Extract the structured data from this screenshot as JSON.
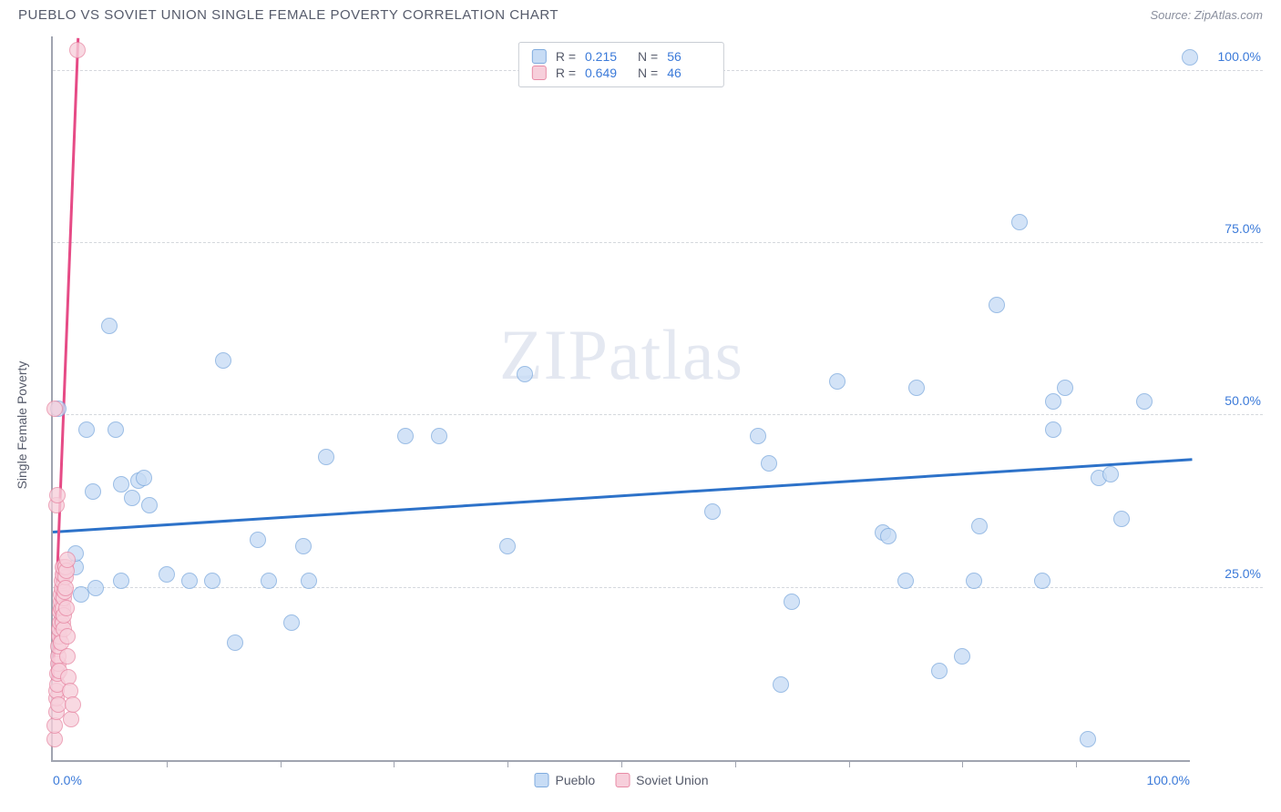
{
  "header": {
    "title": "PUEBLO VS SOVIET UNION SINGLE FEMALE POVERTY CORRELATION CHART",
    "source_prefix": "Source: ",
    "source_name": "ZipAtlas.com"
  },
  "chart": {
    "type": "scatter",
    "y_axis_label": "Single Female Poverty",
    "xlim": [
      0,
      100
    ],
    "ylim": [
      0,
      105
    ],
    "x_ticks_minor": [
      10,
      20,
      30,
      40,
      50,
      60,
      70,
      80,
      90
    ],
    "x_ticks_labeled": [
      {
        "v": 0,
        "label": "0.0%",
        "align": "left"
      },
      {
        "v": 100,
        "label": "100.0%",
        "align": "right"
      }
    ],
    "y_ticks": [
      {
        "v": 25,
        "label": "25.0%"
      },
      {
        "v": 50,
        "label": "50.0%"
      },
      {
        "v": 75,
        "label": "75.0%"
      },
      {
        "v": 100,
        "label": "100.0%"
      }
    ],
    "grid_color": "#d5d8dd",
    "axis_color": "#a0a4b0",
    "background_color": "#ffffff",
    "marker_radius": 9,
    "marker_stroke_width": 1.4,
    "watermark": "ZIPatlas",
    "series": [
      {
        "name": "Pueblo",
        "fill": "#c7dcf5",
        "stroke": "#7fabde",
        "trend_color": "#2d72c9",
        "trend_width": 2.5,
        "R": "0.215",
        "N": "56",
        "trend": {
          "x1": 0,
          "y1": 33.5,
          "x2": 100,
          "y2": 44.0
        },
        "points": [
          [
            0.5,
            51
          ],
          [
            2,
            28
          ],
          [
            2,
            30
          ],
          [
            2.5,
            24
          ],
          [
            3,
            48
          ],
          [
            3.5,
            39
          ],
          [
            3.8,
            25
          ],
          [
            5,
            63
          ],
          [
            5.5,
            48
          ],
          [
            6,
            40
          ],
          [
            6,
            26
          ],
          [
            7,
            38
          ],
          [
            7.5,
            40.5
          ],
          [
            8,
            41
          ],
          [
            8.5,
            37
          ],
          [
            10,
            27
          ],
          [
            12,
            26
          ],
          [
            14,
            26
          ],
          [
            15,
            58
          ],
          [
            16,
            17
          ],
          [
            18,
            32
          ],
          [
            19,
            26
          ],
          [
            21,
            20
          ],
          [
            22,
            31
          ],
          [
            22.5,
            26
          ],
          [
            24,
            44
          ],
          [
            31,
            47
          ],
          [
            34,
            47
          ],
          [
            40,
            31
          ],
          [
            41.5,
            56
          ],
          [
            58,
            36
          ],
          [
            62,
            47
          ],
          [
            63,
            43
          ],
          [
            64,
            11
          ],
          [
            65,
            23
          ],
          [
            69,
            55
          ],
          [
            73,
            33
          ],
          [
            73.5,
            32.5
          ],
          [
            75,
            26
          ],
          [
            76,
            54
          ],
          [
            78,
            13
          ],
          [
            80,
            15
          ],
          [
            81,
            26
          ],
          [
            81.5,
            34
          ],
          [
            83,
            66
          ],
          [
            85,
            78
          ],
          [
            87,
            26
          ],
          [
            88,
            52
          ],
          [
            88,
            48
          ],
          [
            89,
            54
          ],
          [
            91,
            3
          ],
          [
            92,
            41
          ],
          [
            93,
            41.5
          ],
          [
            94,
            35
          ],
          [
            96,
            52
          ],
          [
            100,
            102
          ]
        ]
      },
      {
        "name": "Soviet Union",
        "fill": "#f7cfdb",
        "stroke": "#e88ba6",
        "trend_color": "#e64b86",
        "trend_width": 2.5,
        "R": "0.649",
        "N": "46",
        "trend": {
          "x1": 0,
          "y1": 12,
          "x2": 2.2,
          "y2": 105
        },
        "points": [
          [
            0.2,
            3
          ],
          [
            0.2,
            5
          ],
          [
            0.3,
            7
          ],
          [
            0.3,
            9
          ],
          [
            0.35,
            10
          ],
          [
            0.4,
            11
          ],
          [
            0.4,
            12.5
          ],
          [
            0.45,
            14
          ],
          [
            0.5,
            8
          ],
          [
            0.5,
            15
          ],
          [
            0.5,
            16.5
          ],
          [
            0.55,
            18
          ],
          [
            0.6,
            13
          ],
          [
            0.6,
            19
          ],
          [
            0.65,
            20
          ],
          [
            0.65,
            21.5
          ],
          [
            0.7,
            22
          ],
          [
            0.7,
            23
          ],
          [
            0.75,
            17
          ],
          [
            0.75,
            24
          ],
          [
            0.8,
            25
          ],
          [
            0.8,
            26
          ],
          [
            0.85,
            22
          ],
          [
            0.85,
            27
          ],
          [
            0.9,
            28
          ],
          [
            0.9,
            20
          ],
          [
            0.95,
            19
          ],
          [
            1.0,
            21
          ],
          [
            1.0,
            23.5
          ],
          [
            1.05,
            24.5
          ],
          [
            1.1,
            26.5
          ],
          [
            1.1,
            28
          ],
          [
            1.15,
            25
          ],
          [
            1.2,
            22
          ],
          [
            1.2,
            27.5
          ],
          [
            1.25,
            29
          ],
          [
            1.3,
            18
          ],
          [
            1.3,
            15
          ],
          [
            1.4,
            12
          ],
          [
            1.5,
            10
          ],
          [
            0.35,
            37
          ],
          [
            0.4,
            38.5
          ],
          [
            0.2,
            51
          ],
          [
            1.6,
            6
          ],
          [
            1.8,
            8
          ],
          [
            2.2,
            103
          ]
        ]
      }
    ],
    "legend_top": {
      "R_label": "R =",
      "N_label": "N ="
    },
    "legend_bottom": [
      {
        "swatch_fill": "#c7dcf5",
        "swatch_stroke": "#7fabde",
        "label": "Pueblo"
      },
      {
        "swatch_fill": "#f7cfdb",
        "swatch_stroke": "#e88ba6",
        "label": "Soviet Union"
      }
    ]
  }
}
